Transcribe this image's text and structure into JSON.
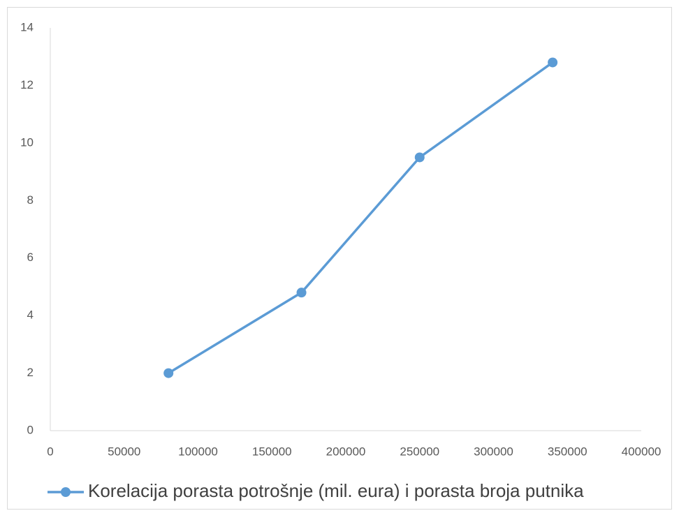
{
  "chart_data": {
    "type": "line",
    "x": [
      80000,
      170000,
      250000,
      340000
    ],
    "series": [
      {
        "name": "Korelacija porasta potrošnje (mil. eura) i porasta broja putnika",
        "color": "#5b9bd5",
        "values": [
          2.0,
          4.8,
          9.5,
          12.8
        ]
      }
    ],
    "xlim": [
      0,
      400000
    ],
    "xticks": [
      0,
      50000,
      100000,
      150000,
      200000,
      250000,
      300000,
      350000,
      400000
    ],
    "ylim": [
      0,
      14
    ],
    "yticks": [
      0,
      2,
      4,
      6,
      8,
      10,
      12,
      14
    ],
    "grid": false,
    "legend": "bottom"
  }
}
